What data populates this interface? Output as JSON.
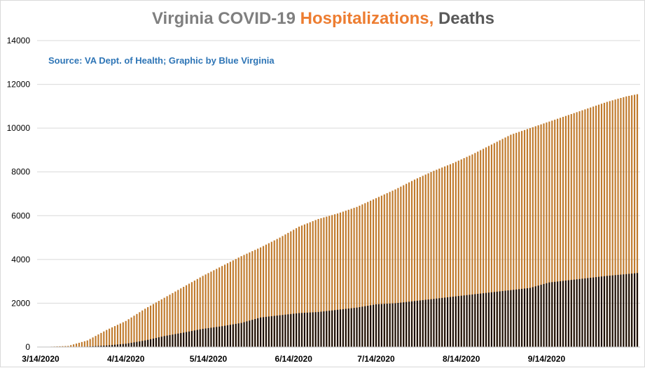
{
  "chart_data": {
    "type": "bar",
    "title_parts": [
      "Virginia COVID-19",
      "Hospitalizations,",
      "Deaths"
    ],
    "subtitle": "Source: VA Dept. of Health; Graphic by Blue Virginia",
    "xlabel": "",
    "ylabel": "",
    "ylim": [
      0,
      14000
    ],
    "yticks": [
      0,
      2000,
      4000,
      6000,
      8000,
      10000,
      12000,
      14000
    ],
    "xticks": [
      "3/14/2020",
      "4/14/2020",
      "5/14/2020",
      "6/14/2020",
      "7/14/2020",
      "8/14/2020",
      "9/14/2020"
    ],
    "grid": true,
    "legend": "none",
    "colors": {
      "hospitalizations": "#c07a2c",
      "deaths": "#1a0d05"
    },
    "x_start": "3/14/2020",
    "x_end": "10/17/2020",
    "series": [
      {
        "key": "hospitalizations",
        "values_by_date": [
          [
            "3/14/2020",
            0
          ],
          [
            "3/24/2020",
            50
          ],
          [
            "3/31/2020",
            300
          ],
          [
            "4/7/2020",
            780
          ],
          [
            "4/14/2020",
            1190
          ],
          [
            "4/21/2020",
            1750
          ],
          [
            "4/28/2020",
            2250
          ],
          [
            "5/5/2020",
            2750
          ],
          [
            "5/12/2020",
            3250
          ],
          [
            "5/19/2020",
            3700
          ],
          [
            "5/26/2020",
            4150
          ],
          [
            "6/2/2020",
            4550
          ],
          [
            "6/9/2020",
            5000
          ],
          [
            "6/16/2020",
            5500
          ],
          [
            "6/23/2020",
            5850
          ],
          [
            "6/30/2020",
            6100
          ],
          [
            "7/7/2020",
            6400
          ],
          [
            "7/14/2020",
            6800
          ],
          [
            "7/21/2020",
            7200
          ],
          [
            "7/28/2020",
            7650
          ],
          [
            "8/4/2020",
            8050
          ],
          [
            "8/11/2020",
            8400
          ],
          [
            "8/18/2020",
            8800
          ],
          [
            "8/25/2020",
            9250
          ],
          [
            "9/1/2020",
            9700
          ],
          [
            "9/8/2020",
            10000
          ],
          [
            "9/15/2020",
            10300
          ],
          [
            "9/22/2020",
            10600
          ],
          [
            "9/29/2020",
            10900
          ],
          [
            "10/6/2020",
            11200
          ],
          [
            "10/13/2020",
            11450
          ],
          [
            "10/17/2020",
            11550
          ]
        ]
      },
      {
        "key": "deaths",
        "values_by_date": [
          [
            "3/14/2020",
            0
          ],
          [
            "3/24/2020",
            5
          ],
          [
            "3/31/2020",
            20
          ],
          [
            "4/7/2020",
            70
          ],
          [
            "4/14/2020",
            150
          ],
          [
            "4/21/2020",
            300
          ],
          [
            "4/28/2020",
            500
          ],
          [
            "5/5/2020",
            660
          ],
          [
            "5/12/2020",
            830
          ],
          [
            "5/19/2020",
            950
          ],
          [
            "5/26/2020",
            1100
          ],
          [
            "6/2/2020",
            1350
          ],
          [
            "6/9/2020",
            1450
          ],
          [
            "6/16/2020",
            1550
          ],
          [
            "6/23/2020",
            1600
          ],
          [
            "6/30/2020",
            1700
          ],
          [
            "7/7/2020",
            1800
          ],
          [
            "7/14/2020",
            1950
          ],
          [
            "7/21/2020",
            2000
          ],
          [
            "7/28/2020",
            2100
          ],
          [
            "8/4/2020",
            2200
          ],
          [
            "8/11/2020",
            2300
          ],
          [
            "8/18/2020",
            2400
          ],
          [
            "8/25/2020",
            2500
          ],
          [
            "9/1/2020",
            2600
          ],
          [
            "9/8/2020",
            2700
          ],
          [
            "9/15/2020",
            2950
          ],
          [
            "9/22/2020",
            3050
          ],
          [
            "9/29/2020",
            3150
          ],
          [
            "10/6/2020",
            3250
          ],
          [
            "10/13/2020",
            3330
          ],
          [
            "10/17/2020",
            3380
          ]
        ]
      }
    ]
  }
}
